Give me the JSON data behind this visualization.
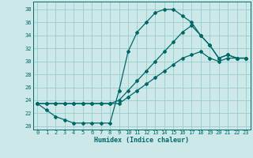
{
  "title": "",
  "xlabel": "Humidex (Indice chaleur)",
  "background_color": "#cce8e8",
  "line_color": "#006868",
  "grid_color": "#99cccc",
  "xlim": [
    -0.5,
    23.5
  ],
  "ylim": [
    19.5,
    39.2
  ],
  "yticks": [
    20,
    22,
    24,
    26,
    28,
    30,
    32,
    34,
    36,
    38
  ],
  "xticks": [
    0,
    1,
    2,
    3,
    4,
    5,
    6,
    7,
    8,
    9,
    10,
    11,
    12,
    13,
    14,
    15,
    16,
    17,
    18,
    19,
    20,
    21,
    22,
    23
  ],
  "series1_x": [
    0,
    1,
    2,
    3,
    4,
    5,
    6,
    7,
    8,
    9,
    10,
    11,
    12,
    13,
    14,
    15,
    16,
    17,
    18,
    19,
    20,
    21,
    22,
    23
  ],
  "series1_y": [
    23.5,
    22.5,
    21.5,
    21.0,
    20.5,
    20.5,
    20.5,
    20.5,
    20.5,
    25.5,
    31.5,
    34.5,
    36.0,
    37.5,
    38.0,
    38.0,
    37.0,
    36.0,
    34.0,
    32.5,
    30.5,
    31.0,
    30.5,
    30.5
  ],
  "series2_x": [
    0,
    1,
    2,
    3,
    4,
    5,
    6,
    7,
    8,
    9,
    10,
    11,
    12,
    13,
    14,
    15,
    16,
    17,
    18,
    19,
    20,
    21,
    22,
    23
  ],
  "series2_y": [
    23.5,
    23.5,
    23.5,
    23.5,
    23.5,
    23.5,
    23.5,
    23.5,
    23.5,
    24.0,
    25.5,
    27.0,
    28.5,
    30.0,
    31.5,
    33.0,
    34.5,
    35.5,
    34.0,
    32.5,
    30.5,
    31.0,
    30.5,
    30.5
  ],
  "series3_x": [
    0,
    1,
    2,
    3,
    4,
    5,
    6,
    7,
    8,
    9,
    10,
    11,
    12,
    13,
    14,
    15,
    16,
    17,
    18,
    19,
    20,
    21,
    22,
    23
  ],
  "series3_y": [
    23.5,
    23.5,
    23.5,
    23.5,
    23.5,
    23.5,
    23.5,
    23.5,
    23.5,
    23.5,
    24.5,
    25.5,
    26.5,
    27.5,
    28.5,
    29.5,
    30.5,
    31.0,
    31.5,
    30.5,
    30.0,
    30.5,
    30.5,
    30.5
  ]
}
